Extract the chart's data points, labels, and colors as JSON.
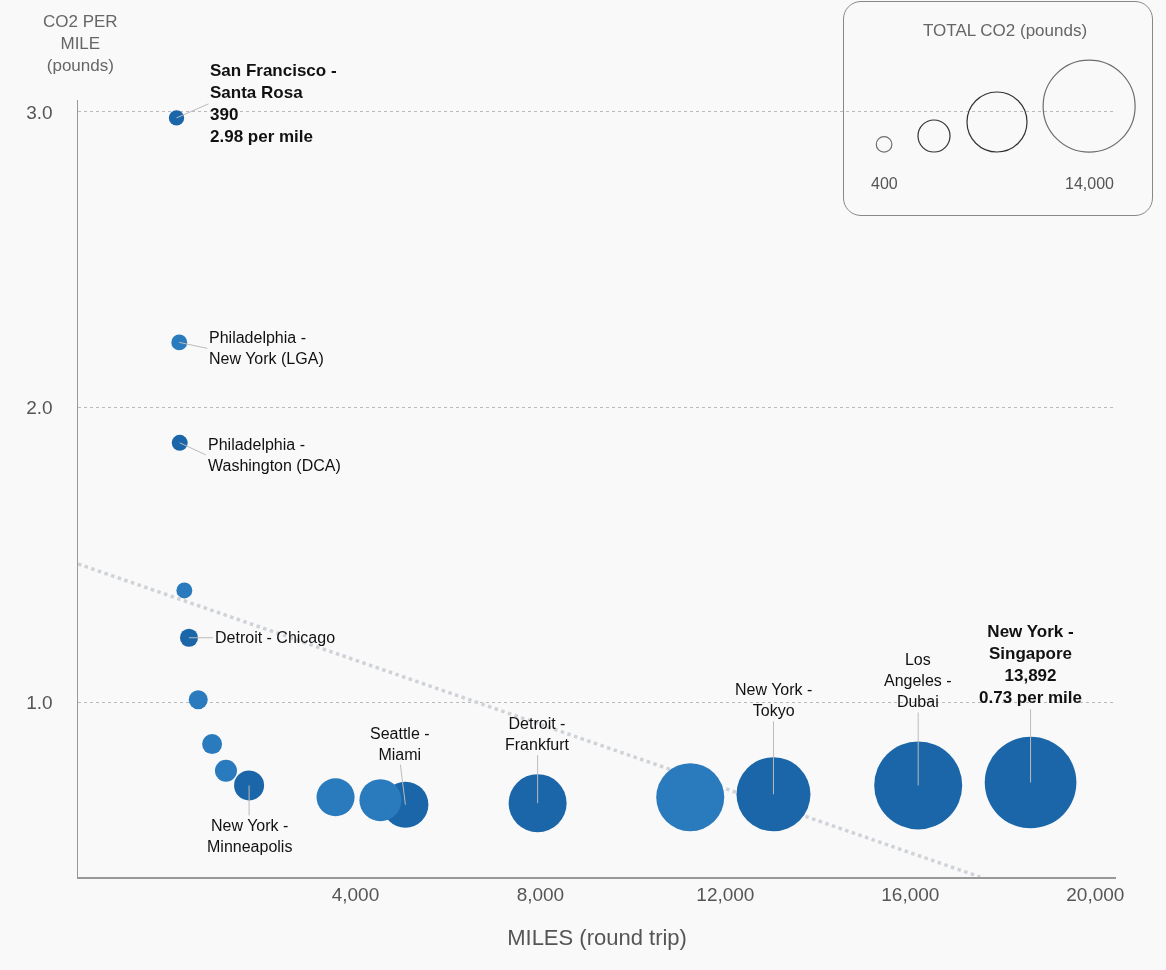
{
  "chart_data": {
    "type": "bubble",
    "xlabel": "MILES (round trip)",
    "ylabel": "CO2 PER\nMILE\n(pounds)",
    "legend_title": "TOTAL CO2 (pounds)",
    "xlim": [
      -2000,
      20450
    ],
    "xticks": [
      {
        "value": 4000,
        "label": "4,000"
      },
      {
        "value": 8000,
        "label": "8,000"
      },
      {
        "value": 12000,
        "label": "12,000"
      },
      {
        "value": 16000,
        "label": "16,000"
      },
      {
        "value": 20000,
        "label": "20,000"
      }
    ],
    "ylim": [
      0.41,
      3.04
    ],
    "yticks": [
      {
        "value": 1,
        "label": "1.0"
      },
      {
        "value": 2,
        "label": "2.0"
      },
      {
        "value": 3,
        "label": "3.0"
      }
    ],
    "grid": "y",
    "size_legend": [
      {
        "value": 400,
        "label": "400"
      },
      {
        "value": 14000,
        "label": "14,000"
      }
    ],
    "series": [
      {
        "color": "#1b66a8",
        "x": [
          130,
          200,
          400,
          1700,
          5080,
          7940,
          13040,
          16170,
          18600
        ],
        "values": [
          2.98,
          1.88,
          1.22,
          0.72,
          0.655,
          0.66,
          0.69,
          0.72,
          0.73
        ],
        "sizes": [
          390,
          420,
          540,
          1490,
          3500,
          5560,
          9060,
          12810,
          13892
        ]
      },
      {
        "color": "#2a7bbd",
        "x": [
          190,
          300,
          600,
          900,
          1200,
          3570,
          4540,
          11240
        ],
        "values": [
          2.22,
          1.38,
          1.01,
          0.86,
          0.77,
          0.68,
          0.67,
          0.68
        ],
        "sizes": [
          420,
          420,
          600,
          660,
          800,
          2390,
          2920,
          7650
        ]
      },
      {
        "type": "line",
        "color": "#cfd3d8",
        "line_style": "dotted",
        "x": [
          -2000,
          17510
        ],
        "values": [
          1.47,
          0.41
        ]
      }
    ],
    "annotations": [
      {
        "text": "San Francisco -\nSanta Rosa\n390\n2.98 per mile",
        "x": 130,
        "y": 2.98
      },
      {
        "text": "Philadelphia -\nNew York (LGA)",
        "x": 190,
        "y": 2.22
      },
      {
        "text": "Philadelphia -\nWashington (DCA)",
        "x": 200,
        "y": 1.88
      },
      {
        "text": "Detroit - Chicago",
        "x": 400,
        "y": 1.22
      },
      {
        "text": "New York -\nMinneapolis",
        "x": 1700,
        "y": 0.72
      },
      {
        "text": "Seattle -\nMiami",
        "x": 5080,
        "y": 0.655
      },
      {
        "text": "Detroit -\nFrankfurt",
        "x": 7940,
        "y": 0.66
      },
      {
        "text": "New York -\nTokyo",
        "x": 13040,
        "y": 0.69
      },
      {
        "text": "Los\nAngeles -\nDubai",
        "x": 16170,
        "y": 0.72
      },
      {
        "text": "New York -\nSingapore\n13,892\n0.73 per mile",
        "x": 18600,
        "y": 0.73
      }
    ]
  }
}
